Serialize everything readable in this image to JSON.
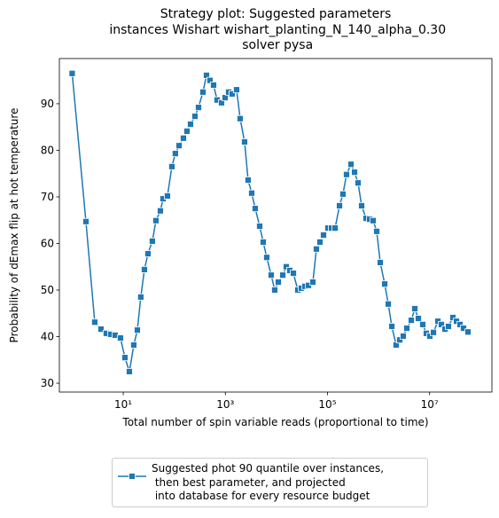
{
  "chart_data": {
    "type": "line",
    "title": "Strategy plot: Suggested parameters\n instances Wishart wishart_planting_N_140_alpha_0.30\n solver pysa",
    "x_label": "Total number of spin variable reads (proportional to time)",
    "y_label": "Probability of dEmax flip at hot temperature",
    "x_scale": "log",
    "xlim": [
      0.562,
      166000000
    ],
    "ylim": [
      28.1,
      99.7
    ],
    "xticks": [
      {
        "value": 10,
        "label": "10¹"
      },
      {
        "value": 1000,
        "label": "10³"
      },
      {
        "value": 100000,
        "label": "10⁵"
      },
      {
        "value": 10000000,
        "label": "10⁷"
      }
    ],
    "yticks": [
      30,
      40,
      50,
      60,
      70,
      80,
      90
    ],
    "legend": "lower center outside",
    "x": [
      1,
      1.86,
      2.77,
      3.67,
      4.66,
      5.69,
      6.95,
      8.83,
      10.8,
      13.2,
      16.1,
      18.9,
      22.1,
      26.0,
      30.5,
      37.2,
      43.7,
      53.4,
      60.2,
      73.5,
      89.7,
      105,
      124,
      151,
      177,
      208,
      254,
      298,
      364,
      427,
      501,
      588,
      690,
      842,
      989,
      1160,
      1360,
      1660,
      1950,
      2380,
      2790,
      3280,
      3850,
      4700,
      5510,
      6470,
      7900,
      9270,
      10900,
      13300,
      15600,
      18300,
      21500,
      26200,
      30800,
      36100,
      42400,
      51700,
      60700,
      71200,
      83600,
      102000,
      120000,
      141000,
      172000,
      201000,
      236000,
      288000,
      339000,
      397000,
      466000,
      569000,
      668000,
      784000,
      920000,
      1080000,
      1320000,
      1550000,
      1820000,
      2210000,
      2600000,
      3050000,
      3580000,
      4380000,
      5130000,
      6020000,
      7350000,
      8630000,
      10100000,
      11900000,
      14500000,
      17000000,
      20000000,
      23400000,
      28600000,
      33600000,
      39400000,
      46200000,
      56400000
    ],
    "series": [
      {
        "name": "Suggested phot 90 quantile over instances,\n then best parameter, and projected\n into database for every resource budget",
        "color": "#1f77b4",
        "marker": "square",
        "values": [
          96.5,
          64.7,
          43.1,
          41.6,
          40.7,
          40.5,
          40.3,
          39.7,
          35.5,
          32.5,
          38.2,
          41.4,
          48.5,
          54.4,
          57.8,
          60.5,
          64.9,
          67.0,
          69.6,
          70.2,
          76.5,
          79.3,
          81.0,
          82.6,
          84.1,
          85.6,
          87.3,
          89.2,
          92.5,
          96.1,
          95.0,
          94.0,
          90.8,
          90.2,
          91.3,
          92.5,
          92.1,
          93.0,
          86.8,
          81.8,
          73.6,
          70.8,
          67.5,
          63.7,
          60.3,
          57.0,
          53.2,
          50.0,
          51.7,
          53.2,
          55.0,
          54.2,
          53.6,
          50.0,
          50.4,
          50.8,
          51.0,
          51.7,
          58.8,
          60.3,
          61.8,
          63.3,
          63.3,
          63.3,
          68.1,
          70.6,
          74.8,
          77.0,
          75.3,
          73.0,
          68.1,
          65.4,
          65.2,
          64.9,
          62.6,
          55.9,
          51.3,
          47.0,
          42.2,
          38.2,
          39.3,
          40.1,
          41.8,
          43.5,
          46.0,
          43.9,
          42.6,
          40.7,
          40.1,
          40.9,
          43.3,
          42.6,
          41.6,
          42.2,
          44.1,
          43.3,
          42.6,
          41.8,
          41.0
        ]
      }
    ]
  }
}
